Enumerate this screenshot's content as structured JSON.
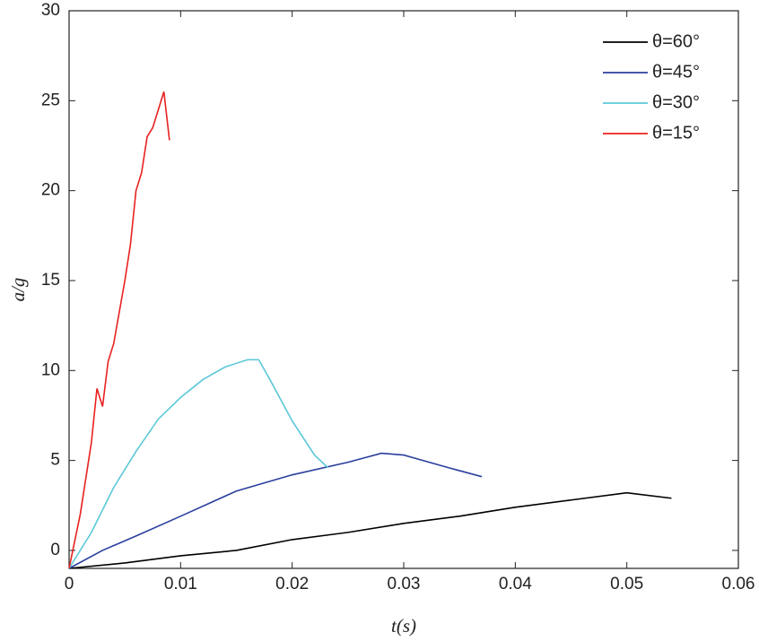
{
  "chart_data": {
    "type": "line",
    "x_label": "t(s)",
    "y_label": "a/g",
    "xlim": [
      0,
      0.06
    ],
    "xticks": [
      0,
      0.01,
      0.02,
      0.03,
      0.04,
      0.05,
      0.06
    ],
    "ylim": [
      -1,
      30
    ],
    "yticks": [
      0,
      5,
      10,
      15,
      20,
      25,
      30
    ],
    "grid": false,
    "legend": "top-right",
    "series": [
      {
        "name": "θ=60°",
        "color": "#000000",
        "x": [
          0,
          0.005,
          0.01,
          0.015,
          0.02,
          0.025,
          0.03,
          0.035,
          0.04,
          0.045,
          0.05,
          0.054
        ],
        "values": [
          -1,
          -0.7,
          -0.3,
          0,
          0.6,
          1.0,
          1.5,
          1.9,
          2.4,
          2.8,
          3.2,
          2.9
        ]
      },
      {
        "name": "θ=45°",
        "color": "#2b3f9e",
        "x": [
          0,
          0.003,
          0.006,
          0.01,
          0.015,
          0.02,
          0.025,
          0.028,
          0.03,
          0.034,
          0.037
        ],
        "values": [
          -1,
          0,
          0.8,
          1.9,
          3.3,
          4.2,
          4.9,
          5.4,
          5.3,
          4.6,
          4.1
        ]
      },
      {
        "name": "θ=30°",
        "color": "#5bc8d8",
        "x": [
          0,
          0.002,
          0.004,
          0.006,
          0.008,
          0.01,
          0.012,
          0.014,
          0.016,
          0.017,
          0.018,
          0.02,
          0.022,
          0.0232
        ],
        "values": [
          -1,
          1,
          3.5,
          5.5,
          7.3,
          8.5,
          9.5,
          10.2,
          10.6,
          10.6,
          9.5,
          7.2,
          5.3,
          4.6
        ]
      },
      {
        "name": "θ=15°",
        "color": "#e8211e",
        "x": [
          0,
          0.001,
          0.002,
          0.0025,
          0.003,
          0.0035,
          0.004,
          0.005,
          0.0055,
          0.006,
          0.0065,
          0.007,
          0.0075,
          0.008,
          0.0085,
          0.009
        ],
        "values": [
          -1,
          2,
          6,
          9,
          8,
          10.5,
          11.5,
          15,
          17,
          20,
          21,
          23,
          23.5,
          24.5,
          25.5,
          22.8
        ]
      }
    ]
  }
}
